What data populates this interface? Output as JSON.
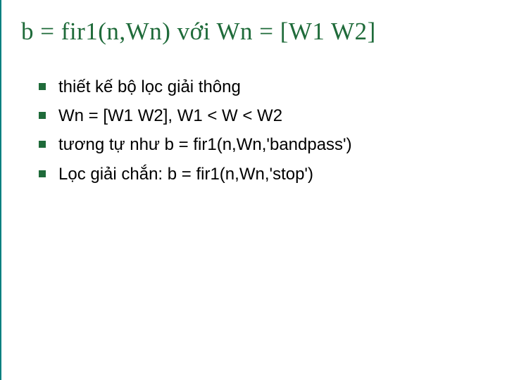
{
  "slide": {
    "title": "b = fir1(n,Wn) với Wn = [W1 W2]",
    "title_color": "#1f6b3a",
    "title_fontsize": 35,
    "title_font": "Times New Roman",
    "bullet_marker_color": "#1f6b3a",
    "bullet_marker_size": 10,
    "bullet_fontsize": 24,
    "bullet_color": "#000000",
    "background_color": "#ffffff",
    "left_border_color": "#008080",
    "bullets": [
      "thiết kế bộ lọc giải thông",
      "Wn = [W1 W2], W1 < W < W2",
      "tương tự như b = fir1(n,Wn,'bandpass')",
      "Lọc giải chắn: b = fir1(n,Wn,'stop')"
    ]
  }
}
